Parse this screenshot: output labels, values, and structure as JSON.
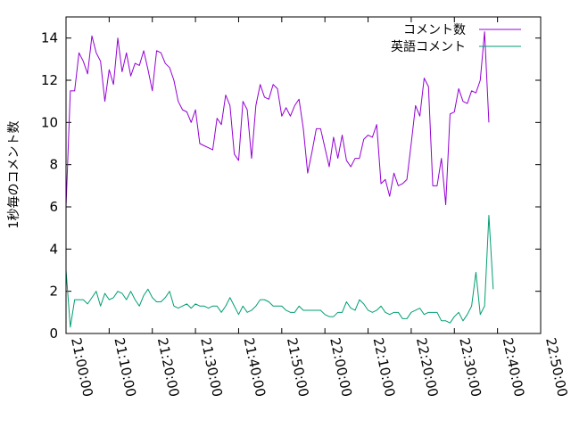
{
  "chart_data": {
    "type": "line",
    "title": "",
    "xlabel": "",
    "ylabel": "1秒毎のコメント数",
    "ylim": [
      0,
      15
    ],
    "xlim": [
      "21:00:00",
      "22:50:00"
    ],
    "yticks": [
      0,
      2,
      4,
      6,
      8,
      10,
      12,
      14
    ],
    "xticks": [
      "21:00:00",
      "21:10:00",
      "21:20:00",
      "21:30:00",
      "21:40:00",
      "21:50:00",
      "22:00:00",
      "22:10:00",
      "22:20:00",
      "22:30:00",
      "22:40:00",
      "22:50:00"
    ],
    "grid": false,
    "legend_position": "top-right",
    "x_interval_minutes": 1,
    "series": [
      {
        "name": "コメント数",
        "color": "#9400d3",
        "values": [
          6.0,
          11.5,
          11.5,
          13.3,
          12.9,
          12.3,
          14.1,
          13.3,
          12.9,
          11.0,
          12.5,
          11.8,
          14.0,
          12.4,
          13.3,
          12.2,
          12.8,
          12.7,
          13.4,
          12.5,
          11.5,
          13.4,
          13.3,
          12.8,
          12.6,
          12.0,
          11.0,
          10.6,
          10.5,
          10.0,
          10.6,
          9.0,
          8.9,
          8.8,
          8.7,
          10.2,
          9.9,
          11.3,
          10.8,
          8.5,
          8.2,
          11.0,
          10.6,
          8.3,
          10.8,
          11.8,
          11.2,
          11.1,
          11.8,
          11.6,
          10.3,
          10.7,
          10.3,
          10.8,
          11.1,
          9.7,
          7.6,
          8.6,
          9.7,
          9.7,
          8.8,
          7.9,
          9.3,
          8.3,
          9.4,
          8.2,
          7.9,
          8.3,
          8.3,
          9.2,
          9.4,
          9.3,
          9.9,
          7.1,
          7.3,
          6.5,
          7.6,
          7.0,
          7.1,
          7.3,
          9.0,
          10.8,
          10.3,
          12.1,
          11.7,
          7.0,
          7.0,
          8.3,
          6.1,
          10.4,
          10.5,
          11.6,
          11.0,
          10.9,
          11.5,
          11.4,
          12.0,
          14.3,
          10.0
        ]
      },
      {
        "name": "英語コメント",
        "color": "#009e73",
        "values": [
          3.0,
          0.3,
          1.6,
          1.6,
          1.6,
          1.4,
          1.7,
          2.0,
          1.3,
          1.9,
          1.6,
          1.7,
          2.0,
          1.9,
          1.6,
          2.0,
          1.6,
          1.3,
          1.8,
          2.1,
          1.7,
          1.5,
          1.5,
          1.7,
          2.0,
          1.3,
          1.2,
          1.3,
          1.4,
          1.2,
          1.4,
          1.3,
          1.3,
          1.2,
          1.3,
          1.3,
          1.0,
          1.3,
          1.7,
          1.3,
          0.9,
          1.3,
          1.0,
          1.1,
          1.3,
          1.6,
          1.6,
          1.5,
          1.3,
          1.3,
          1.3,
          1.1,
          1.0,
          1.0,
          1.3,
          1.1,
          1.1,
          1.1,
          1.1,
          1.1,
          0.9,
          0.8,
          0.8,
          1.0,
          1.0,
          1.5,
          1.2,
          1.1,
          1.6,
          1.4,
          1.1,
          1.0,
          1.1,
          1.3,
          1.0,
          0.9,
          1.0,
          1.0,
          0.7,
          0.7,
          1.0,
          1.1,
          1.2,
          0.9,
          1.0,
          1.0,
          1.0,
          0.6,
          0.6,
          0.5,
          0.8,
          1.0,
          0.6,
          0.9,
          1.3,
          2.9,
          0.9,
          1.3,
          5.6,
          2.1
        ]
      }
    ]
  }
}
